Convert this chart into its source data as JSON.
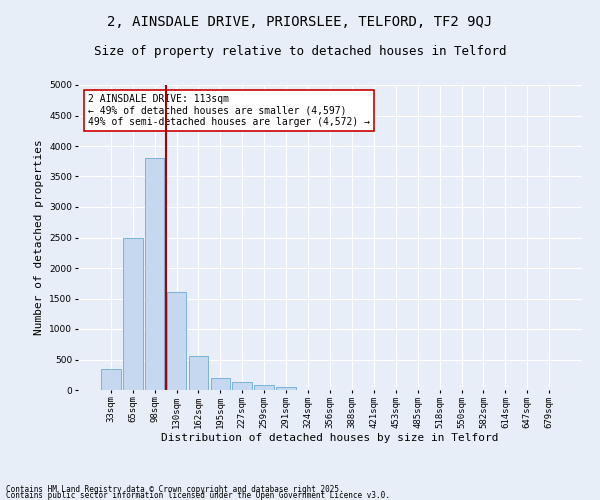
{
  "title_line1": "2, AINSDALE DRIVE, PRIORSLEE, TELFORD, TF2 9QJ",
  "title_line2": "Size of property relative to detached houses in Telford",
  "xlabel": "Distribution of detached houses by size in Telford",
  "ylabel": "Number of detached properties",
  "categories": [
    "33sqm",
    "65sqm",
    "98sqm",
    "130sqm",
    "162sqm",
    "195sqm",
    "227sqm",
    "259sqm",
    "291sqm",
    "324sqm",
    "356sqm",
    "388sqm",
    "421sqm",
    "453sqm",
    "485sqm",
    "518sqm",
    "550sqm",
    "582sqm",
    "614sqm",
    "647sqm",
    "679sqm"
  ],
  "values": [
    350,
    2500,
    3800,
    1600,
    550,
    200,
    130,
    80,
    50,
    0,
    0,
    0,
    0,
    0,
    0,
    0,
    0,
    0,
    0,
    0,
    0
  ],
  "bar_color": "#c5d8ef",
  "bar_edge_color": "#6aaad4",
  "vline_x": 2.5,
  "vline_color": "#aa0000",
  "annotation_text": "2 AINSDALE DRIVE: 113sqm\n← 49% of detached houses are smaller (4,597)\n49% of semi-detached houses are larger (4,572) →",
  "annotation_box_color": "#ffffff",
  "annotation_box_edge": "#cc0000",
  "ylim": [
    0,
    5000
  ],
  "yticks": [
    0,
    500,
    1000,
    1500,
    2000,
    2500,
    3000,
    3500,
    4000,
    4500,
    5000
  ],
  "bg_color": "#e8eef8",
  "plot_bg_color": "#e8eef8",
  "grid_color": "#ffffff",
  "footer_line1": "Contains HM Land Registry data © Crown copyright and database right 2025.",
  "footer_line2": "Contains public sector information licensed under the Open Government Licence v3.0.",
  "title_fontsize": 10,
  "subtitle_fontsize": 9,
  "tick_fontsize": 6.5,
  "label_fontsize": 8,
  "ann_fontsize": 7
}
